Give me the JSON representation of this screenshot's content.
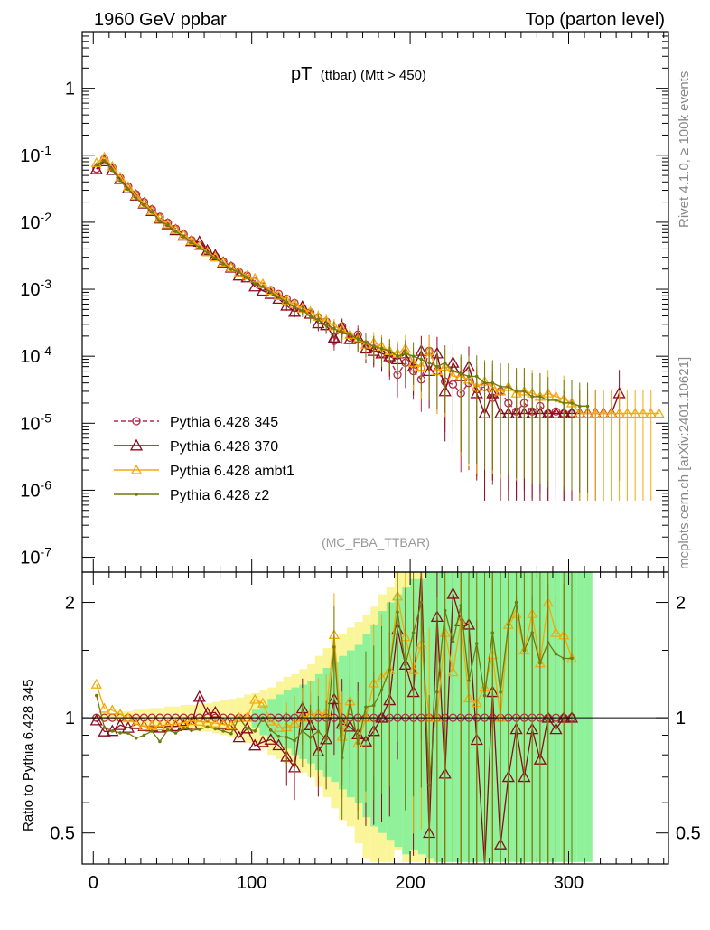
{
  "header": {
    "left": "1960 GeV ppbar",
    "right": "Top (parton level)"
  },
  "side_labels": {
    "rivet": "Rivet 4.1.0, ≥ 100k events",
    "mcplots": "mcplots.cern.ch [arXiv:2401.10621]"
  },
  "colors": {
    "p345": "#b5284a",
    "p370": "#8b0a1e",
    "ambt1": "#f5a80a",
    "z2": "#6f7a0f",
    "band_yellow": "#fbf59a",
    "band_green": "#8ff29a"
  },
  "chart_data": [
    {
      "type": "line",
      "title": "pT",
      "title_sub": "(ttbar) (Mtt > 450)",
      "watermark": "(MC_FBA_TTBAR)",
      "xlabel": "",
      "ylabel": "",
      "yscale": "log",
      "xlim": [
        -7,
        363
      ],
      "ylim": [
        6e-08,
        7
      ],
      "y_ticks": [
        "1",
        "10^-1",
        "10^-2",
        "10^-3",
        "10^-4",
        "10^-5",
        "10^-6",
        "10^-7"
      ],
      "legend_position": "middle-left",
      "series": [
        {
          "name": "Pythia 6.428 345",
          "key": "p345",
          "style": "dashed-circle",
          "x": [
            2,
            7,
            12,
            17,
            22,
            27,
            32,
            37,
            42,
            47,
            52,
            57,
            62,
            67,
            72,
            77,
            82,
            87,
            92,
            97,
            102,
            107,
            112,
            117,
            122,
            127,
            132,
            137,
            142,
            147,
            152,
            157,
            162,
            167,
            172,
            177,
            182,
            187,
            192,
            197,
            202,
            207,
            212,
            217,
            222,
            227,
            232,
            237,
            242,
            247,
            252,
            257,
            262,
            267,
            272,
            277,
            282,
            287,
            292,
            297,
            302
          ],
          "y": [
            0.063,
            0.088,
            0.065,
            0.046,
            0.034,
            0.026,
            0.02,
            0.0155,
            0.012,
            0.0098,
            0.008,
            0.0066,
            0.0054,
            0.0045,
            0.0037,
            0.0031,
            0.0026,
            0.0022,
            0.0018,
            0.0016,
            0.0013,
            0.0011,
            0.00097,
            0.00085,
            0.00072,
            0.00062,
            0.00052,
            0.00045,
            0.00038,
            0.00033,
            0.00017,
            0.00028,
            0.00019,
            0.00021,
            0.00015,
            0.00013,
            0.00011,
            9e-05,
            5.3e-05,
            8e-05,
            6e-05,
            4.5e-05,
            0.00012,
            6e-05,
            4.2e-05,
            3.8e-05,
            2.8e-05,
            4e-05,
            3.2e-05,
            3.5e-05,
            2.4e-05,
            3e-05,
            2e-05,
            1.5e-05,
            2e-05,
            1.5e-05,
            1.8e-05,
            1.4e-05,
            1.5e-05,
            1.4e-05,
            1.4e-05
          ]
        },
        {
          "name": "Pythia 6.428 370",
          "key": "p370",
          "style": "solid-triangle",
          "x": [
            2,
            7,
            12,
            17,
            22,
            27,
            32,
            37,
            42,
            47,
            52,
            57,
            62,
            67,
            72,
            77,
            82,
            87,
            92,
            97,
            102,
            107,
            112,
            117,
            122,
            127,
            132,
            137,
            142,
            147,
            152,
            157,
            162,
            167,
            172,
            177,
            182,
            187,
            192,
            197,
            202,
            207,
            212,
            217,
            222,
            227,
            232,
            237,
            242,
            247,
            252,
            257,
            262,
            267,
            272,
            277,
            282,
            287,
            292,
            297,
            302,
            307,
            312,
            317,
            322,
            327,
            332
          ],
          "y": [
            0.062,
            0.081,
            0.06,
            0.044,
            0.032,
            0.025,
            0.019,
            0.0147,
            0.0113,
            0.0093,
            0.0076,
            0.0063,
            0.0052,
            0.0051,
            0.0038,
            0.0032,
            0.0025,
            0.0021,
            0.0016,
            0.0015,
            0.0011,
            0.00095,
            0.00085,
            0.00072,
            0.00057,
            0.00046,
            0.00055,
            0.00043,
            0.00031,
            0.00029,
            0.00019,
            0.00027,
            0.00018,
            0.00019,
            0.00013,
            0.00012,
            0.00011,
            0.0001,
            9e-05,
            0.00011,
            7e-05,
            0.00012,
            6e-05,
            0.00011,
            3e-05,
            8e-05,
            5e-05,
            7e-05,
            2.8e-05,
            1.4e-05,
            2.8e-05,
            1.4e-05,
            1.4e-05,
            1.4e-05,
            1.4e-05,
            1.4e-05,
            1.4e-05,
            1.4e-05,
            1.4e-05,
            1.4e-05,
            1.4e-05,
            1.4e-05,
            1.4e-05,
            1.4e-05,
            1.4e-05,
            1.4e-05,
            2.8e-05
          ]
        },
        {
          "name": "Pythia 6.428 ambt1",
          "key": "ambt1",
          "style": "solid-triangle",
          "x": [
            2,
            7,
            12,
            17,
            22,
            27,
            32,
            37,
            42,
            47,
            52,
            57,
            62,
            67,
            72,
            77,
            82,
            87,
            92,
            97,
            102,
            107,
            112,
            117,
            122,
            127,
            132,
            137,
            142,
            147,
            152,
            157,
            162,
            167,
            172,
            177,
            182,
            187,
            192,
            197,
            202,
            207,
            212,
            217,
            222,
            227,
            232,
            237,
            242,
            247,
            252,
            257,
            262,
            267,
            272,
            277,
            282,
            287,
            292,
            297,
            302,
            307,
            312,
            317,
            322,
            327,
            332,
            337,
            342,
            347,
            352,
            357
          ],
          "y": [
            0.077,
            0.093,
            0.068,
            0.047,
            0.034,
            0.025,
            0.019,
            0.0148,
            0.0114,
            0.0094,
            0.0077,
            0.0064,
            0.0053,
            0.0044,
            0.0036,
            0.003,
            0.0025,
            0.0021,
            0.0018,
            0.0016,
            0.00145,
            0.0012,
            0.00095,
            0.0008,
            0.00068,
            0.0006,
            0.00052,
            0.00046,
            0.00039,
            0.00034,
            0.00028,
            0.00025,
            0.00021,
            0.00018,
            0.00015,
            0.00016,
            0.00014,
            0.00012,
            0.00011,
            0.00013,
            8e-05,
            7e-05,
            0.00012,
            6e-05,
            7e-05,
            5e-05,
            5e-05,
            4.5e-05,
            3.5e-05,
            4.2e-05,
            3.5e-05,
            3e-05,
            3.5e-05,
            2.8e-05,
            3e-05,
            2.8e-05,
            2.5e-05,
            2.8e-05,
            2.5e-05,
            2.3e-05,
            2e-05,
            1.4e-05,
            1.4e-05,
            1.4e-05,
            1.4e-05,
            1.4e-05,
            1.4e-05,
            1.4e-05,
            1.4e-05,
            1.4e-05,
            1.4e-05,
            1.4e-05
          ]
        },
        {
          "name": "Pythia 6.428 z2",
          "key": "z2",
          "style": "solid-dot",
          "x": [
            2,
            7,
            12,
            17,
            22,
            27,
            32,
            37,
            42,
            47,
            52,
            57,
            62,
            67,
            72,
            77,
            82,
            87,
            92,
            97,
            102,
            107,
            112,
            117,
            122,
            127,
            132,
            137,
            142,
            147,
            152,
            157,
            162,
            167,
            172,
            177,
            182,
            187,
            192,
            197,
            202,
            207,
            212,
            217,
            222,
            227,
            232,
            237,
            242,
            247,
            252,
            257,
            262,
            267,
            272,
            277,
            282,
            287,
            292,
            297,
            302,
            307,
            312
          ],
          "y": [
            0.072,
            0.083,
            0.06,
            0.042,
            0.031,
            0.023,
            0.018,
            0.0143,
            0.0104,
            0.0091,
            0.0073,
            0.0062,
            0.005,
            0.0042,
            0.0035,
            0.0029,
            0.0024,
            0.002,
            0.0018,
            0.0015,
            0.0012,
            0.0011,
            0.0009,
            0.00076,
            0.00064,
            0.00054,
            0.00048,
            0.0004,
            0.00035,
            0.00029,
            0.00026,
            0.00022,
            0.00021,
            0.00018,
            0.00016,
            0.00014,
            0.00013,
            0.00012,
            0.0001,
            0.00011,
            0.0001,
            9e-05,
            8e-05,
            7e-05,
            8e-05,
            6e-05,
            5.5e-05,
            5e-05,
            5e-05,
            4e-05,
            4e-05,
            3.5e-05,
            3.5e-05,
            3e-05,
            3e-05,
            2.5e-05,
            2.5e-05,
            2.2e-05,
            2.2e-05,
            2e-05,
            2e-05,
            1.8e-05,
            1.8e-05
          ]
        }
      ]
    },
    {
      "type": "line",
      "title": "",
      "xlabel": "",
      "ylabel": "Ratio to Pythia 6.428 345",
      "yscale": "log",
      "xlim": [
        -7,
        363
      ],
      "ylim": [
        0.415,
        2.4
      ],
      "x_ticks": [
        0,
        100,
        200,
        300
      ],
      "y_ticks": [
        0.5,
        1,
        2
      ],
      "reference_line": 1,
      "bands": [
        {
          "name": "yellow",
          "key": "band_yellow",
          "x": [
            0,
            5,
            10,
            15,
            20,
            25,
            30,
            35,
            40,
            45,
            50,
            55,
            60,
            65,
            70,
            75,
            80,
            85,
            90,
            95,
            100,
            105,
            110,
            115,
            120,
            125,
            130,
            135,
            140,
            145,
            150,
            155,
            160,
            165,
            170,
            175,
            180,
            185,
            190,
            195,
            200,
            205,
            210,
            215,
            220,
            225,
            230,
            235,
            240,
            245,
            250,
            255
          ],
          "lo": [
            0.99,
            0.98,
            0.98,
            0.97,
            0.97,
            0.96,
            0.96,
            0.95,
            0.95,
            0.94,
            0.94,
            0.93,
            0.93,
            0.92,
            0.92,
            0.91,
            0.9,
            0.89,
            0.88,
            0.86,
            0.85,
            0.83,
            0.8,
            0.78,
            0.76,
            0.74,
            0.72,
            0.7,
            0.66,
            0.62,
            0.58,
            0.54,
            0.52,
            0.47,
            0.43,
            0.42,
            0.42,
            0.42,
            0.45,
            0.42,
            0.42,
            0.42,
            0.42,
            0.42,
            0.42,
            0.42,
            0.42,
            0.42,
            0.42,
            0.42,
            0.42,
            0.42
          ],
          "hi": [
            1.02,
            1.03,
            1.03,
            1.04,
            1.04,
            1.05,
            1.05,
            1.06,
            1.06,
            1.07,
            1.07,
            1.08,
            1.08,
            1.09,
            1.09,
            1.1,
            1.11,
            1.12,
            1.13,
            1.15,
            1.16,
            1.18,
            1.2,
            1.24,
            1.28,
            1.3,
            1.34,
            1.38,
            1.45,
            1.52,
            1.6,
            1.65,
            1.72,
            1.78,
            1.85,
            1.95,
            2.1,
            2.2,
            2.4,
            2.4,
            2.4,
            2.4,
            2.4,
            2.4,
            2.4,
            2.4,
            2.4,
            2.4,
            2.4,
            2.4,
            2.4,
            2.4
          ]
        },
        {
          "name": "green",
          "key": "band_green",
          "x": [
            100,
            105,
            110,
            115,
            120,
            125,
            130,
            135,
            140,
            145,
            150,
            155,
            160,
            165,
            170,
            175,
            180,
            185,
            190,
            195,
            200,
            205,
            210,
            215,
            220,
            225,
            230,
            235,
            240,
            245,
            250,
            255,
            260,
            265,
            270,
            275,
            280,
            285,
            290,
            295,
            300,
            305,
            310
          ],
          "lo": [
            0.94,
            0.9,
            0.88,
            0.85,
            0.83,
            0.8,
            0.78,
            0.76,
            0.73,
            0.7,
            0.68,
            0.65,
            0.62,
            0.6,
            0.55,
            0.52,
            0.5,
            0.48,
            0.46,
            0.44,
            0.45,
            0.44,
            0.43,
            0.42,
            0.42,
            0.42,
            0.42,
            0.42,
            0.42,
            0.42,
            0.42,
            0.42,
            0.42,
            0.42,
            0.42,
            0.42,
            0.42,
            0.42,
            0.42,
            0.42,
            0.42,
            0.42,
            0.42
          ],
          "hi": [
            1.05,
            1.08,
            1.12,
            1.15,
            1.18,
            1.2,
            1.22,
            1.25,
            1.3,
            1.35,
            1.4,
            1.45,
            1.5,
            1.55,
            1.65,
            1.75,
            1.9,
            2.0,
            2.1,
            2.2,
            2.3,
            2.3,
            2.4,
            2.4,
            2.4,
            2.4,
            2.4,
            2.4,
            2.4,
            2.4,
            2.4,
            2.4,
            2.4,
            2.4,
            2.4,
            2.4,
            2.4,
            2.4,
            2.4,
            2.4,
            2.4,
            2.4,
            2.4
          ]
        }
      ]
    }
  ]
}
